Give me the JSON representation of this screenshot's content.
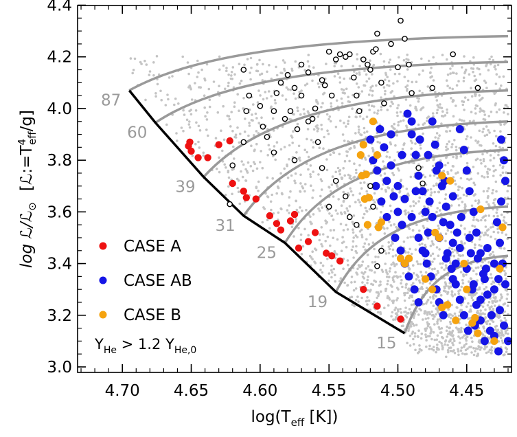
{
  "chart_data": {
    "type": "scatter",
    "xlabel": "log(T",
    "xlabel_sub": "eff",
    "xlabel_unit": " [K])",
    "ylabel": "log ℒ/ℒ",
    "ylabel_sun": "⊙",
    "ylabel_def": "[ℒ:=T",
    "ylabel_def_sup": "4",
    "ylabel_def_sub": "eff",
    "ylabel_def_end": "/g]",
    "xlim": [
      4.735,
      4.42
    ],
    "ylim": [
      3.0,
      4.42
    ],
    "x_ticks": [
      "4.70",
      "4.65",
      "4.60",
      "4.55",
      "4.50",
      "4.45"
    ],
    "y_ticks": [
      "3.0",
      "3.2",
      "3.4",
      "3.6",
      "3.8",
      "4.0",
      "4.2",
      "4.4"
    ],
    "colors": {
      "case_a": "#ee1111",
      "case_ab": "#1515e6",
      "case_b": "#f5a30f",
      "background_pop": "#c4c4c4",
      "tracks": "#9a9a9a",
      "zams": "#000000"
    },
    "legend": [
      {
        "label": "CASE A",
        "color": "#ee1111"
      },
      {
        "label": "CASE AB",
        "color": "#1515e6"
      },
      {
        "label": "CASE B",
        "color": "#f5a30f"
      }
    ],
    "annotation": {
      "yhe": "Y",
      "yhe_sub": "He",
      "op": " > 1.2 Y",
      "yhe0_sub": "He,0"
    },
    "tracks": [
      {
        "mass": "87",
        "start": [
          4.695,
          4.07
        ],
        "end": [
          4.42,
          4.28
        ]
      },
      {
        "mass": "60",
        "start": [
          4.676,
          3.945
        ],
        "end": [
          4.42,
          4.18
        ]
      },
      {
        "mass": "39",
        "start": [
          4.641,
          3.735
        ],
        "end": [
          4.42,
          4.07
        ]
      },
      {
        "mass": "31",
        "start": [
          4.612,
          3.585
        ],
        "end": [
          4.42,
          3.95
        ]
      },
      {
        "mass": "25",
        "start": [
          4.582,
          3.48
        ],
        "end": [
          4.42,
          3.84
        ]
      },
      {
        "mass": "19",
        "start": [
          4.545,
          3.29
        ],
        "end": [
          4.42,
          3.62
        ]
      },
      {
        "mass": "15",
        "start": [
          4.495,
          3.13
        ],
        "end": [
          4.42,
          3.43
        ]
      }
    ],
    "zams": [
      [
        4.695,
        4.07
      ],
      [
        4.676,
        3.945
      ],
      [
        4.641,
        3.735
      ],
      [
        4.612,
        3.585
      ],
      [
        4.582,
        3.48
      ],
      [
        4.545,
        3.29
      ],
      [
        4.495,
        3.13
      ]
    ],
    "series": [
      {
        "name": "CASE A",
        "points": [
          [
            4.651,
            3.87
          ],
          [
            4.652,
            3.855
          ],
          [
            4.65,
            3.835
          ],
          [
            4.645,
            3.81
          ],
          [
            4.638,
            3.81
          ],
          [
            4.63,
            3.86
          ],
          [
            4.622,
            3.875
          ],
          [
            4.62,
            3.71
          ],
          [
            4.612,
            3.68
          ],
          [
            4.61,
            3.655
          ],
          [
            4.603,
            3.65
          ],
          [
            4.593,
            3.585
          ],
          [
            4.588,
            3.555
          ],
          [
            4.585,
            3.53
          ],
          [
            4.578,
            3.565
          ],
          [
            4.575,
            3.59
          ],
          [
            4.572,
            3.46
          ],
          [
            4.565,
            3.485
          ],
          [
            4.56,
            3.52
          ],
          [
            4.552,
            3.44
          ],
          [
            4.548,
            3.43
          ],
          [
            4.542,
            3.41
          ],
          [
            4.525,
            3.3
          ],
          [
            4.515,
            3.235
          ],
          [
            4.498,
            3.185
          ]
        ]
      },
      {
        "name": "CASE AB",
        "points": [
          [
            4.513,
            3.92
          ],
          [
            4.51,
            3.85
          ],
          [
            4.505,
            3.78
          ],
          [
            4.508,
            3.72
          ],
          [
            4.503,
            3.66
          ],
          [
            4.5,
            3.6
          ],
          [
            4.497,
            3.55
          ],
          [
            4.493,
            3.98
          ],
          [
            4.49,
            3.9
          ],
          [
            4.487,
            3.82
          ],
          [
            4.485,
            3.74
          ],
          [
            4.482,
            3.68
          ],
          [
            4.48,
            3.6
          ],
          [
            4.478,
            3.52
          ],
          [
            4.475,
            3.95
          ],
          [
            4.473,
            3.86
          ],
          [
            4.47,
            3.78
          ],
          [
            4.468,
            3.7
          ],
          [
            4.465,
            3.62
          ],
          [
            4.462,
            3.55
          ],
          [
            4.46,
            3.48
          ],
          [
            4.458,
            3.4
          ],
          [
            4.455,
            3.92
          ],
          [
            4.452,
            3.84
          ],
          [
            4.45,
            3.76
          ],
          [
            4.448,
            3.68
          ],
          [
            4.445,
            3.6
          ],
          [
            4.443,
            3.52
          ],
          [
            4.44,
            3.44
          ],
          [
            4.438,
            3.36
          ],
          [
            4.435,
            3.28
          ],
          [
            4.432,
            3.2
          ],
          [
            4.43,
            3.12
          ],
          [
            4.427,
            3.06
          ],
          [
            4.425,
            3.88
          ],
          [
            4.423,
            3.8
          ],
          [
            4.422,
            3.72
          ],
          [
            4.425,
            3.64
          ],
          [
            4.428,
            3.56
          ],
          [
            4.426,
            3.48
          ],
          [
            4.424,
            3.4
          ],
          [
            4.422,
            3.32
          ],
          [
            4.52,
            3.88
          ],
          [
            4.518,
            3.8
          ],
          [
            4.516,
            3.7
          ],
          [
            4.512,
            3.64
          ],
          [
            4.508,
            3.58
          ],
          [
            4.502,
            3.5
          ],
          [
            4.498,
            3.45
          ],
          [
            4.495,
            3.4
          ],
          [
            4.492,
            3.35
          ],
          [
            4.488,
            3.3
          ],
          [
            4.485,
            3.25
          ],
          [
            4.482,
            3.45
          ],
          [
            4.479,
            3.4
          ],
          [
            4.476,
            3.35
          ],
          [
            4.472,
            3.3
          ],
          [
            4.47,
            3.25
          ],
          [
            4.467,
            3.2
          ],
          [
            4.464,
            3.44
          ],
          [
            4.461,
            3.38
          ],
          [
            4.458,
            3.32
          ],
          [
            4.455,
            3.26
          ],
          [
            4.452,
            3.2
          ],
          [
            4.449,
            3.14
          ],
          [
            4.446,
            3.3
          ],
          [
            4.443,
            3.24
          ],
          [
            4.44,
            3.18
          ],
          [
            4.437,
            3.1
          ],
          [
            4.49,
            3.95
          ],
          [
            4.484,
            3.88
          ],
          [
            4.478,
            3.82
          ],
          [
            4.472,
            3.76
          ],
          [
            4.466,
            3.72
          ],
          [
            4.46,
            3.66
          ],
          [
            4.454,
            3.58
          ],
          [
            4.448,
            3.5
          ],
          [
            4.442,
            3.42
          ],
          [
            4.436,
            3.38
          ],
          [
            4.43,
            3.3
          ],
          [
            4.5,
            3.7
          ],
          [
            4.495,
            3.65
          ],
          [
            4.49,
            3.58
          ],
          [
            4.485,
            3.5
          ],
          [
            4.48,
            3.44
          ],
          [
            4.475,
            3.58
          ],
          [
            4.47,
            3.5
          ],
          [
            4.465,
            3.42
          ],
          [
            4.46,
            3.34
          ],
          [
            4.455,
            3.46
          ],
          [
            4.45,
            3.38
          ],
          [
            4.445,
            3.32
          ],
          [
            4.44,
            3.26
          ],
          [
            4.435,
            3.46
          ],
          [
            4.43,
            3.4
          ],
          [
            4.426,
            3.22
          ],
          [
            4.423,
            3.16
          ],
          [
            4.42,
            3.1
          ],
          [
            4.515,
            3.76
          ],
          [
            4.505,
            3.9
          ],
          [
            4.497,
            3.82
          ],
          [
            4.487,
            3.68
          ],
          [
            4.477,
            3.64
          ],
          [
            4.467,
            3.56
          ],
          [
            4.457,
            3.52
          ],
          [
            4.447,
            3.44
          ],
          [
            4.437,
            3.34
          ],
          [
            4.427,
            3.34
          ],
          [
            4.433,
            3.14
          ],
          [
            4.444,
            3.16
          ]
        ]
      },
      {
        "name": "CASE B",
        "points": [
          [
            4.525,
            3.86
          ],
          [
            4.527,
            3.82
          ],
          [
            4.523,
            3.745
          ],
          [
            4.526,
            3.74
          ],
          [
            4.524,
            3.65
          ],
          [
            4.521,
            3.655
          ],
          [
            4.522,
            3.55
          ],
          [
            4.514,
            3.54
          ],
          [
            4.512,
            3.56
          ],
          [
            4.518,
            3.95
          ],
          [
            4.515,
            3.82
          ],
          [
            4.498,
            3.42
          ],
          [
            4.495,
            3.4
          ],
          [
            4.492,
            3.42
          ],
          [
            4.473,
            3.52
          ],
          [
            4.47,
            3.5
          ],
          [
            4.48,
            3.34
          ],
          [
            4.475,
            3.3
          ],
          [
            4.468,
            3.23
          ],
          [
            4.464,
            3.24
          ],
          [
            4.458,
            3.18
          ],
          [
            4.45,
            3.3
          ],
          [
            4.44,
            3.61
          ],
          [
            4.442,
            3.13
          ],
          [
            4.444,
            3.19
          ],
          [
            4.446,
            3.17
          ],
          [
            4.424,
            3.54
          ],
          [
            4.426,
            3.38
          ],
          [
            4.43,
            3.1
          ],
          [
            4.452,
            3.4
          ],
          [
            4.468,
            3.74
          ],
          [
            4.462,
            3.72
          ]
        ]
      },
      {
        "name": "open circles",
        "points": [
          [
            4.612,
            4.15
          ],
          [
            4.608,
            4.05
          ],
          [
            4.61,
            3.99
          ],
          [
            4.612,
            3.87
          ],
          [
            4.6,
            4.01
          ],
          [
            4.598,
            3.93
          ],
          [
            4.595,
            3.89
          ],
          [
            4.59,
            3.99
          ],
          [
            4.588,
            4.06
          ],
          [
            4.585,
            4.1
          ],
          [
            4.582,
            3.96
          ],
          [
            4.58,
            4.13
          ],
          [
            4.578,
            3.99
          ],
          [
            4.575,
            4.08
          ],
          [
            4.573,
            3.92
          ],
          [
            4.57,
            4.05
          ],
          [
            4.57,
            4.17
          ],
          [
            4.565,
            4.14
          ],
          [
            4.562,
            3.96
          ],
          [
            4.56,
            4.0
          ],
          [
            4.558,
            3.87
          ],
          [
            4.555,
            4.11
          ],
          [
            4.553,
            4.09
          ],
          [
            4.55,
            4.22
          ],
          [
            4.548,
            4.05
          ],
          [
            4.545,
            4.19
          ],
          [
            4.542,
            4.21
          ],
          [
            4.538,
            4.2
          ],
          [
            4.535,
            4.21
          ],
          [
            4.532,
            4.12
          ],
          [
            4.53,
            4.05
          ],
          [
            4.528,
            3.99
          ],
          [
            4.525,
            4.19
          ],
          [
            4.522,
            4.17
          ],
          [
            4.52,
            4.15
          ],
          [
            4.518,
            4.22
          ],
          [
            4.516,
            4.23
          ],
          [
            4.515,
            4.29
          ],
          [
            4.512,
            4.1
          ],
          [
            4.51,
            4.02
          ],
          [
            4.505,
            4.25
          ],
          [
            4.5,
            4.16
          ],
          [
            4.498,
            4.34
          ],
          [
            4.495,
            4.27
          ],
          [
            4.492,
            4.17
          ],
          [
            4.49,
            4.06
          ],
          [
            4.485,
            3.77
          ],
          [
            4.482,
            3.71
          ],
          [
            4.475,
            4.08
          ],
          [
            4.46,
            4.21
          ],
          [
            4.442,
            4.08
          ],
          [
            4.555,
            3.77
          ],
          [
            4.55,
            3.62
          ],
          [
            4.545,
            3.72
          ],
          [
            4.538,
            3.66
          ],
          [
            4.535,
            3.58
          ],
          [
            4.53,
            3.55
          ],
          [
            4.518,
            3.62
          ],
          [
            4.512,
            3.45
          ],
          [
            4.515,
            3.39
          ],
          [
            4.62,
            3.78
          ],
          [
            4.622,
            3.63
          ],
          [
            4.52,
            3.7
          ],
          [
            4.565,
            3.95
          ],
          [
            4.575,
            3.8
          ],
          [
            4.59,
            3.83
          ]
        ]
      }
    ],
    "background_population": "dense grey dots"
  }
}
